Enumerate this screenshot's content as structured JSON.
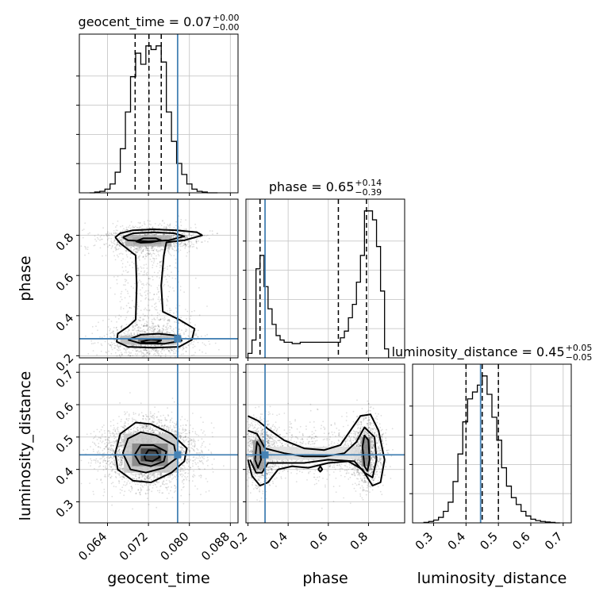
{
  "chart_data": {
    "type": "corner",
    "parameters": [
      "geocent_time",
      "phase",
      "luminosity_distance"
    ],
    "truths": {
      "geocent_time": 0.0777,
      "phase": 0.285,
      "luminosity_distance": 0.445
    },
    "ranges": {
      "geocent_time": [
        0.0585,
        0.0895
      ],
      "phase": [
        0.19,
        0.98
      ],
      "luminosity_distance": [
        0.235,
        0.725
      ]
    },
    "axis_labels": {
      "geocent_time": "geocent_time",
      "phase": "phase",
      "luminosity_distance": "luminosity_distance"
    },
    "ticks": {
      "geocent_time": {
        "values": [
          0.064,
          0.072,
          0.08,
          0.088
        ],
        "labels": [
          "0.064",
          "0.072",
          "0.080",
          "0.088"
        ]
      },
      "phase": {
        "values": [
          0.2,
          0.4,
          0.6,
          0.8
        ],
        "labels": [
          "0.2",
          "0.4",
          "0.6",
          "0.8"
        ]
      },
      "luminosity_distance_y": {
        "values": [
          0.3,
          0.4,
          0.5,
          0.6,
          0.7
        ],
        "labels": [
          "0.3",
          "0.4",
          "0.5",
          "0.6",
          "0.7"
        ]
      },
      "luminosity_distance_x": {
        "values": [
          0.3,
          0.4,
          0.5,
          0.6,
          0.7
        ],
        "labels": [
          "0.3",
          "0.4",
          "0.5",
          "0.6",
          "0.7"
        ]
      }
    },
    "titles": [
      {
        "param": "geocent_time",
        "text": "geocent_time = 0.07",
        "sup": "+0.00",
        "sub": "−0.00"
      },
      {
        "param": "phase",
        "text": "phase = 0.65",
        "sup": "+0.14",
        "sub": "−0.39"
      },
      {
        "param": "luminosity_distance",
        "text": "luminosity_distance = 0.45",
        "sup": "+0.05",
        "sub": "−0.05"
      }
    ],
    "quantiles": {
      "geocent_time": [
        0.0694,
        0.0721,
        0.0745
      ],
      "phase": [
        0.26,
        0.65,
        0.79
      ],
      "luminosity_distance": [
        0.4,
        0.45,
        0.5
      ]
    },
    "histograms": {
      "geocent_time": {
        "edges": [
          0.0605,
          0.0615,
          0.0625,
          0.0635,
          0.0645,
          0.0655,
          0.0665,
          0.0675,
          0.0685,
          0.0695,
          0.0705,
          0.0715,
          0.0725,
          0.0735,
          0.0745,
          0.0755,
          0.0765,
          0.0775,
          0.0785,
          0.0795,
          0.0805,
          0.0815,
          0.0825,
          0.0835,
          0.0845,
          0.0855
        ],
        "counts": [
          0,
          1,
          2,
          5,
          12,
          28,
          60,
          110,
          158,
          190,
          175,
          200,
          195,
          200,
          178,
          110,
          70,
          40,
          25,
          12,
          5,
          2,
          1,
          0,
          0
        ]
      },
      "phase": {
        "edges": [
          0.2,
          0.22,
          0.24,
          0.26,
          0.28,
          0.3,
          0.32,
          0.34,
          0.36,
          0.38,
          0.4,
          0.42,
          0.44,
          0.46,
          0.48,
          0.5,
          0.52,
          0.54,
          0.56,
          0.58,
          0.6,
          0.62,
          0.64,
          0.66,
          0.68,
          0.7,
          0.72,
          0.74,
          0.76,
          0.78,
          0.8,
          0.82,
          0.84,
          0.86,
          0.88,
          0.9
        ],
        "counts": [
          10,
          40,
          200,
          230,
          160,
          110,
          75,
          50,
          40,
          35,
          35,
          32,
          32,
          35,
          35,
          35,
          35,
          35,
          35,
          35,
          35,
          35,
          35,
          45,
          60,
          90,
          120,
          170,
          230,
          330,
          330,
          310,
          250,
          150,
          20
        ]
      },
      "luminosity_distance": {
        "edges": [
          0.27,
          0.285,
          0.3,
          0.315,
          0.33,
          0.345,
          0.36,
          0.375,
          0.39,
          0.405,
          0.42,
          0.435,
          0.45,
          0.465,
          0.48,
          0.495,
          0.51,
          0.525,
          0.54,
          0.555,
          0.57,
          0.585,
          0.6,
          0.615,
          0.63,
          0.645,
          0.66,
          0.675,
          0.69
        ],
        "counts": [
          1,
          3,
          6,
          12,
          25,
          45,
          90,
          150,
          220,
          270,
          285,
          300,
          320,
          280,
          230,
          180,
          120,
          80,
          55,
          40,
          25,
          15,
          8,
          5,
          3,
          2,
          1,
          0
        ]
      }
    },
    "contours": {
      "phase_vs_geocent_time": [
        [
          [
            0.0655,
            0.79
          ],
          [
            0.0665,
            0.81
          ],
          [
            0.069,
            0.825
          ],
          [
            0.073,
            0.83
          ],
          [
            0.0775,
            0.825
          ],
          [
            0.0815,
            0.815
          ],
          [
            0.0825,
            0.8
          ],
          [
            0.079,
            0.775
          ],
          [
            0.0755,
            0.765
          ],
          [
            0.075,
            0.7
          ],
          [
            0.0745,
            0.55
          ],
          [
            0.0748,
            0.42
          ],
          [
            0.078,
            0.38
          ],
          [
            0.081,
            0.335
          ],
          [
            0.0805,
            0.28
          ],
          [
            0.078,
            0.245
          ],
          [
            0.073,
            0.24
          ],
          [
            0.068,
            0.245
          ],
          [
            0.0658,
            0.27
          ],
          [
            0.066,
            0.31
          ],
          [
            0.068,
            0.345
          ],
          [
            0.0695,
            0.38
          ],
          [
            0.0697,
            0.55
          ],
          [
            0.0695,
            0.7
          ],
          [
            0.0665,
            0.76
          ],
          [
            0.0655,
            0.79
          ]
        ],
        [
          [
            0.067,
            0.79
          ],
          [
            0.069,
            0.81
          ],
          [
            0.073,
            0.815
          ],
          [
            0.077,
            0.81
          ],
          [
            0.079,
            0.795
          ],
          [
            0.076,
            0.775
          ],
          [
            0.072,
            0.77
          ],
          [
            0.068,
            0.775
          ],
          [
            0.067,
            0.79
          ]
        ],
        [
          [
            0.0695,
            0.77
          ],
          [
            0.071,
            0.785
          ],
          [
            0.0735,
            0.785
          ],
          [
            0.0745,
            0.775
          ],
          [
            0.0725,
            0.765
          ],
          [
            0.0705,
            0.763
          ],
          [
            0.0695,
            0.77
          ]
        ],
        [
          [
            0.068,
            0.28
          ],
          [
            0.0705,
            0.305
          ],
          [
            0.074,
            0.31
          ],
          [
            0.078,
            0.3
          ],
          [
            0.0785,
            0.275
          ],
          [
            0.075,
            0.26
          ],
          [
            0.0705,
            0.262
          ],
          [
            0.068,
            0.28
          ]
        ],
        [
          [
            0.0705,
            0.27
          ],
          [
            0.0725,
            0.282
          ],
          [
            0.0745,
            0.278
          ],
          [
            0.0735,
            0.266
          ],
          [
            0.0715,
            0.264
          ],
          [
            0.0705,
            0.27
          ]
        ]
      ],
      "luminosity_distance_vs_geocent_time": [
        [
          [
            0.0655,
            0.45
          ],
          [
            0.0665,
            0.51
          ],
          [
            0.0695,
            0.545
          ],
          [
            0.0725,
            0.54
          ],
          [
            0.0765,
            0.51
          ],
          [
            0.0795,
            0.465
          ],
          [
            0.079,
            0.425
          ],
          [
            0.0765,
            0.39
          ],
          [
            0.0725,
            0.36
          ],
          [
            0.069,
            0.365
          ],
          [
            0.066,
            0.4
          ],
          [
            0.0655,
            0.45
          ]
        ],
        [
          [
            0.067,
            0.45
          ],
          [
            0.068,
            0.495
          ],
          [
            0.0705,
            0.515
          ],
          [
            0.0735,
            0.505
          ],
          [
            0.077,
            0.475
          ],
          [
            0.0775,
            0.435
          ],
          [
            0.075,
            0.405
          ],
          [
            0.0715,
            0.39
          ],
          [
            0.0685,
            0.4
          ],
          [
            0.067,
            0.45
          ]
        ],
        [
          [
            0.0693,
            0.445
          ],
          [
            0.0705,
            0.475
          ],
          [
            0.073,
            0.475
          ],
          [
            0.0755,
            0.455
          ],
          [
            0.075,
            0.425
          ],
          [
            0.0725,
            0.41
          ],
          [
            0.0703,
            0.418
          ],
          [
            0.0693,
            0.445
          ]
        ],
        [
          [
            0.0712,
            0.44
          ],
          [
            0.072,
            0.46
          ],
          [
            0.0735,
            0.458
          ],
          [
            0.0742,
            0.438
          ],
          [
            0.0728,
            0.425
          ],
          [
            0.0715,
            0.428
          ],
          [
            0.0712,
            0.44
          ]
        ]
      ],
      "luminosity_distance_vs_phase": [
        [
          [
            0.2,
            0.565
          ],
          [
            0.25,
            0.55
          ],
          [
            0.3,
            0.525
          ],
          [
            0.38,
            0.49
          ],
          [
            0.48,
            0.465
          ],
          [
            0.58,
            0.46
          ],
          [
            0.66,
            0.475
          ],
          [
            0.71,
            0.52
          ],
          [
            0.76,
            0.565
          ],
          [
            0.81,
            0.57
          ],
          [
            0.85,
            0.52
          ],
          [
            0.88,
            0.43
          ],
          [
            0.86,
            0.36
          ],
          [
            0.82,
            0.35
          ],
          [
            0.77,
            0.4
          ],
          [
            0.7,
            0.425
          ],
          [
            0.6,
            0.42
          ],
          [
            0.5,
            0.405
          ],
          [
            0.42,
            0.41
          ],
          [
            0.35,
            0.4
          ],
          [
            0.3,
            0.36
          ],
          [
            0.26,
            0.35
          ],
          [
            0.22,
            0.38
          ],
          [
            0.2,
            0.43
          ]
        ],
        [
          [
            0.2,
            0.52
          ],
          [
            0.245,
            0.51
          ],
          [
            0.285,
            0.465
          ],
          [
            0.38,
            0.45
          ],
          [
            0.48,
            0.44
          ],
          [
            0.58,
            0.44
          ],
          [
            0.68,
            0.45
          ],
          [
            0.74,
            0.485
          ],
          [
            0.78,
            0.53
          ],
          [
            0.83,
            0.5
          ],
          [
            0.84,
            0.43
          ],
          [
            0.82,
            0.375
          ],
          [
            0.78,
            0.39
          ],
          [
            0.73,
            0.425
          ],
          [
            0.6,
            0.43
          ],
          [
            0.48,
            0.42
          ],
          [
            0.38,
            0.42
          ],
          [
            0.3,
            0.42
          ],
          [
            0.27,
            0.39
          ],
          [
            0.24,
            0.39
          ],
          [
            0.21,
            0.43
          ]
        ],
        [
          [
            0.235,
            0.43
          ],
          [
            0.245,
            0.485
          ],
          [
            0.26,
            0.47
          ],
          [
            0.265,
            0.43
          ],
          [
            0.25,
            0.405
          ],
          [
            0.235,
            0.43
          ]
        ],
        [
          [
            0.77,
            0.47
          ],
          [
            0.78,
            0.505
          ],
          [
            0.8,
            0.49
          ],
          [
            0.805,
            0.43
          ],
          [
            0.795,
            0.395
          ],
          [
            0.78,
            0.41
          ],
          [
            0.77,
            0.47
          ]
        ],
        [
          [
            0.55,
            0.4
          ],
          [
            0.56,
            0.41
          ],
          [
            0.57,
            0.4
          ],
          [
            0.56,
            0.393
          ],
          [
            0.55,
            0.4
          ]
        ]
      ]
    },
    "density_cells": {
      "phase_vs_geocent_time": [
        [
          0.069,
          0.0745,
          0.755,
          0.79,
          0.7
        ],
        [
          0.0705,
          0.0735,
          0.765,
          0.785,
          0.95
        ],
        [
          0.0675,
          0.0765,
          0.745,
          0.8,
          0.35
        ],
        [
          0.0665,
          0.0775,
          0.255,
          0.3,
          0.3
        ],
        [
          0.07,
          0.0745,
          0.26,
          0.285,
          0.65
        ]
      ],
      "luminosity_distance_vs_geocent_time": [
        [
          0.0672,
          0.0778,
          0.39,
          0.51,
          0.25
        ],
        [
          0.0688,
          0.0758,
          0.41,
          0.48,
          0.55
        ],
        [
          0.0705,
          0.0745,
          0.425,
          0.465,
          0.85
        ]
      ],
      "luminosity_distance_vs_phase": [
        [
          0.225,
          0.28,
          0.4,
          0.49,
          0.45
        ],
        [
          0.765,
          0.81,
          0.41,
          0.5,
          0.55
        ],
        [
          0.28,
          0.76,
          0.43,
          0.47,
          0.15
        ]
      ]
    }
  }
}
